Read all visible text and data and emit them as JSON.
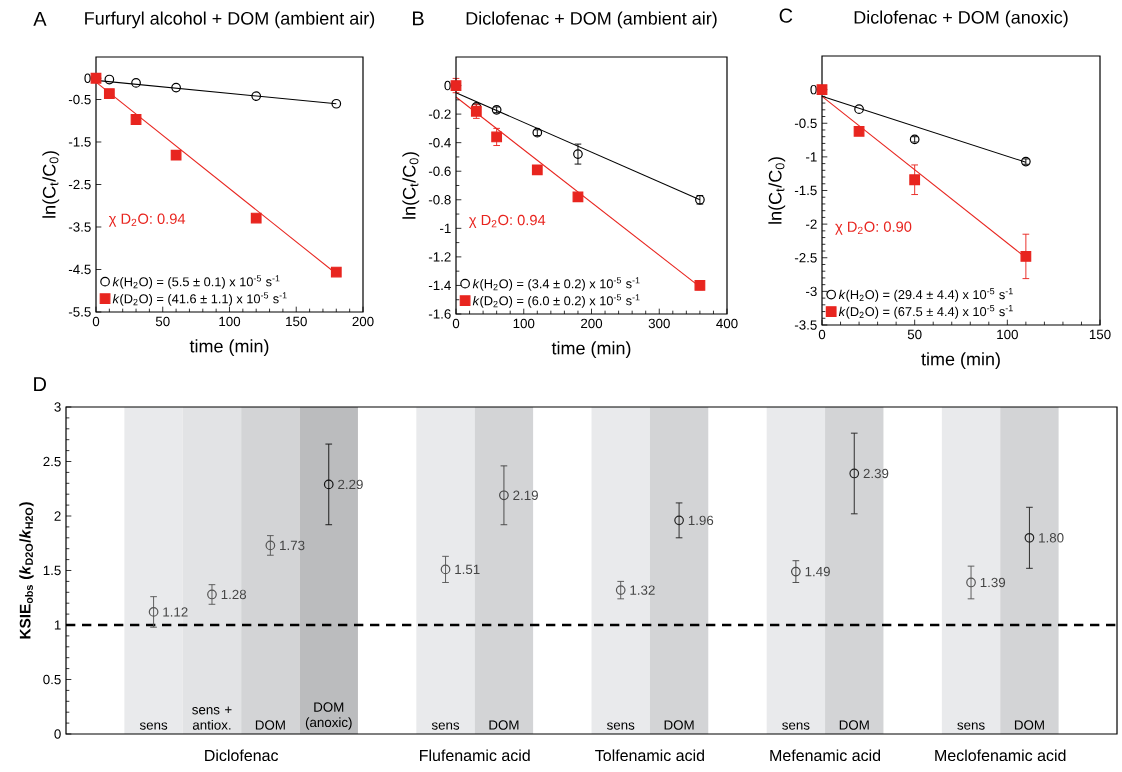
{
  "chart_data": [
    {
      "type": "scatter",
      "title": "Furfuryl alcohol + DOM (ambient air)",
      "xlabel": "time (min)",
      "ylabel": "ln(C$_{t}$/C$_{0}$)",
      "annotations": [
        "A",
        "χ D$_{2}$O: 0.94"
      ],
      "xlim": [
        0,
        200
      ],
      "xticks": [
        0,
        50,
        100,
        150,
        200
      ],
      "ylim": [
        -5.5,
        0.5
      ],
      "yticks": [
        -5.5,
        -4.5,
        -3.5,
        -2.5,
        -1.5,
        -0.5,
        0
      ],
      "legend": "bottom left",
      "series": [
        {
          "name": "*k*(H$_{2}$O) = (5.5 ± 0.1) x 10$^{-5}$ s$^{-1}$",
          "color": "#000000",
          "marker": "circle",
          "x": [
            0,
            10,
            30,
            60,
            120,
            180
          ],
          "values": [
            0,
            -0.03,
            -0.11,
            -0.22,
            -0.42,
            -0.6
          ]
        },
        {
          "name": "*k*(D$_{2}$O) = (41.6 ± 1.1) x 10$^{-5}$ s$^{-1}$",
          "color": "#e8251f",
          "marker": "square",
          "x": [
            0,
            10,
            30,
            60,
            120,
            180
          ],
          "values": [
            0,
            -0.36,
            -0.97,
            -1.81,
            -3.29,
            -4.56
          ]
        },
        {
          "type": "line",
          "color": "#000000",
          "x": [
            0,
            180
          ],
          "values": [
            -0.05,
            -0.6
          ]
        },
        {
          "type": "line",
          "color": "#e8251f",
          "x": [
            0,
            180
          ],
          "values": [
            -0.09,
            -4.6
          ]
        }
      ]
    },
    {
      "type": "scatter",
      "title": "Diclofenac + DOM (ambient air)",
      "xlabel": "time (min)",
      "ylabel": "ln(C$_{t}$/C$_{0}$)",
      "annotations": [
        "B",
        "χ D$_{2}$O: 0.94"
      ],
      "xlim": [
        0,
        400
      ],
      "xticks": [
        0,
        100,
        200,
        300,
        400
      ],
      "ylim": [
        -1.6,
        0.2
      ],
      "yticks": [
        -1.6,
        -1.4,
        -1.2,
        -1,
        -0.8,
        -0.6,
        -0.4,
        -0.2,
        0
      ],
      "legend": "bottom left",
      "series": [
        {
          "name": "*k*(H$_{2}$O) = (3.4 ± 0.2) x 10$^{-5}$ s$^{-1}$",
          "color": "#000000",
          "marker": "circle",
          "x": [
            0,
            30,
            60,
            120,
            180,
            360
          ],
          "values": [
            0,
            -0.15,
            -0.17,
            -0.33,
            -0.48,
            -0.8
          ],
          "errors": [
            null,
            0.02,
            0.02,
            0.02,
            0.07,
            0.03
          ]
        },
        {
          "name": "*k*(D$_{2}$O) = (6.0 ± 0.2) x 10$^{-5}$ s$^{-1}$",
          "color": "#e8251f",
          "marker": "square",
          "x": [
            0,
            30,
            60,
            120,
            180,
            360
          ],
          "values": [
            0,
            -0.18,
            -0.36,
            -0.59,
            -0.78,
            -1.4
          ],
          "errors": [
            0.05,
            0.05,
            0.06,
            null,
            null,
            0.03
          ]
        },
        {
          "type": "line",
          "color": "#000000",
          "x": [
            0,
            360
          ],
          "values": [
            -0.05,
            -0.8
          ]
        },
        {
          "type": "line",
          "color": "#e8251f",
          "x": [
            0,
            360
          ],
          "values": [
            -0.08,
            -1.41
          ]
        }
      ]
    },
    {
      "type": "scatter",
      "title": "Diclofenac + DOM (anoxic)",
      "xlabel": "time (min)",
      "ylabel": "ln(C$_{t}$/C$_{0}$)",
      "annotations": [
        "C",
        "χ D$_{2}$O: 0.90"
      ],
      "xlim": [
        0,
        150
      ],
      "xticks": [
        0,
        50,
        100,
        150
      ],
      "ylim": [
        -3.5,
        0.5
      ],
      "yticks": [
        -3.5,
        -3,
        -2.5,
        -2,
        -1.5,
        -1,
        -0.5,
        0
      ],
      "legend": "bottom left",
      "series": [
        {
          "name": "*k*(H$_{2}$O) = (29.4 ± 4.4) x 10$^{-5}$ s$^{-1}$",
          "color": "#000000",
          "marker": "circle",
          "x": [
            0,
            20,
            50,
            110
          ],
          "values": [
            0,
            -0.29,
            -0.74,
            -1.07
          ],
          "errors": [
            null,
            null,
            0.04,
            0.04
          ]
        },
        {
          "name": "*k*(D$_{2}$O) = (67.5 ± 4.4) x 10$^{-5}$ s$^{-1}$",
          "color": "#e8251f",
          "marker": "square",
          "x": [
            0,
            20,
            50,
            110
          ],
          "values": [
            0,
            -0.62,
            -1.34,
            -2.48
          ],
          "errors": [
            null,
            null,
            0.22,
            0.33
          ]
        },
        {
          "type": "line",
          "color": "#000000",
          "x": [
            0,
            110
          ],
          "values": [
            -0.1,
            -1.08
          ]
        },
        {
          "type": "line",
          "color": "#e8251f",
          "x": [
            0,
            110
          ],
          "values": [
            -0.1,
            -2.5
          ]
        }
      ]
    },
    {
      "type": "scatter",
      "ylabel": "KSIE$_{obs}$ (*k*$_{D2O}$/*k*$_{H2O}$)",
      "annotations": [
        "D",
        "Diclofenac",
        "Flufenamic acid",
        "Tolfenamic acid",
        "Mefenamic acid",
        "Meclofenamic acid"
      ],
      "categories": [
        null,
        "sens",
        "sens + antiox.",
        "DOM",
        "DOM (anoxic)",
        null,
        "sens",
        "DOM",
        null,
        "sens",
        "DOM",
        null,
        "sens",
        "DOM",
        null,
        "sens",
        "DOM",
        null
      ],
      "ylim": [
        0,
        3
      ],
      "yticks": [
        0,
        0.5,
        1,
        1.5,
        2,
        2.5,
        3
      ],
      "marker": "circle",
      "bands": [
        {
          "axis": "x",
          "from": "sens",
          "to": "sens",
          "color": "#e9eaec"
        },
        {
          "axis": "x",
          "from": "sens + antiox.",
          "to": "sens + antiox.",
          "color": "#e2e3e5"
        },
        {
          "axis": "x",
          "from": "DOM",
          "to": "DOM",
          "color": "#d3d4d6"
        },
        {
          "axis": "x",
          "from": "DOM (anoxic)",
          "to": "DOM (anoxic)",
          "color": "#bbbcbe"
        }
      ],
      "ref_lines": [
        {
          "axis": "y",
          "value": 1,
          "line_style": "dashed",
          "color": "#000000"
        }
      ],
      "series": [
        {
          "color": "#444444",
          "colors": [
            null,
            "#555555",
            "#555555",
            "#555555",
            "#111111",
            null,
            "#555555",
            "#444444",
            null,
            "#555555",
            "#222222",
            null,
            "#444444",
            "#222222",
            null,
            "#555555",
            "#222222",
            null
          ],
          "values": [
            null,
            1.12,
            1.28,
            1.73,
            2.29,
            null,
            1.51,
            2.19,
            null,
            1.32,
            1.96,
            null,
            1.49,
            2.39,
            null,
            1.39,
            1.8,
            null
          ],
          "errors": [
            null,
            0.14,
            0.09,
            0.09,
            0.37,
            null,
            0.12,
            0.27,
            null,
            0.08,
            0.16,
            null,
            0.1,
            0.37,
            null,
            0.15,
            0.28,
            null
          ],
          "value_labels": [
            null,
            "1.12",
            "1.28",
            "1.73",
            "2.29",
            null,
            "1.51",
            "2.19",
            null,
            "1.32",
            "1.96",
            null,
            "1.49",
            "2.39",
            null,
            "1.39",
            "1.80",
            null
          ]
        }
      ]
    }
  ]
}
